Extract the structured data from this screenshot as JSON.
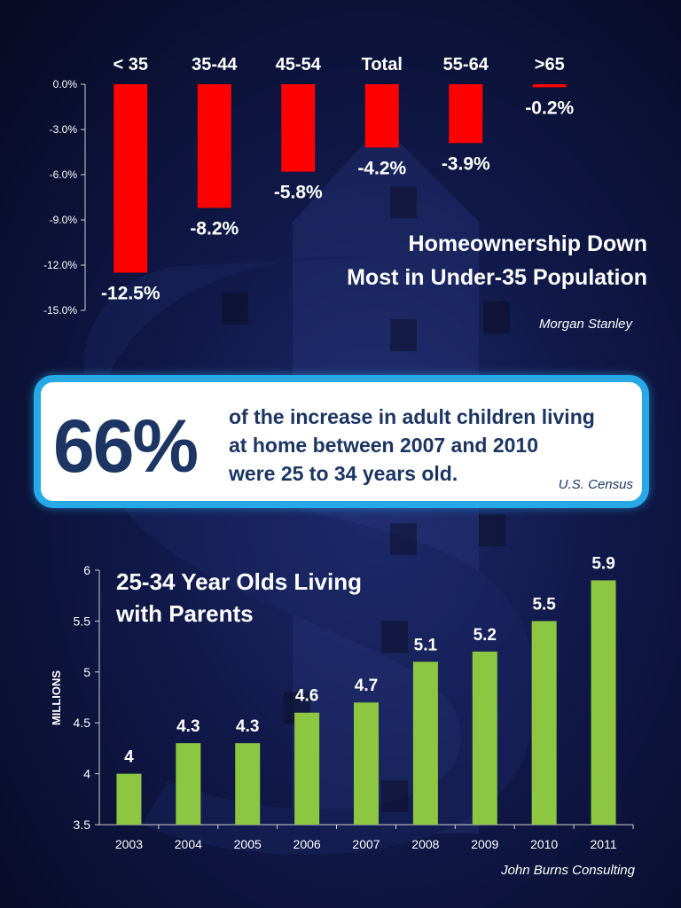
{
  "colors": {
    "negative_bar": "#ff0000",
    "positive_bar": "#8dc641",
    "callout_border": "#27a9e8",
    "callout_text": "#1c3563"
  },
  "top": {
    "title_line1": "Homeownership Down",
    "title_line2": "Most in Under-35 Population",
    "source": "Morgan Stanley"
  },
  "callout": {
    "percent": "66%",
    "line1": "of the increase in adult children living",
    "line2": "at home between 2007 and 2010",
    "line3": "were 25 to 34 years old.",
    "source": "U.S. Census"
  },
  "bottom": {
    "title_line1": "25-34 Year Olds Living",
    "title_line2": "with Parents",
    "source": "John Burns Consulting"
  },
  "chart_data": [
    {
      "type": "bar",
      "title": "Homeownership Down Most in Under-35 Population",
      "categories": [
        "< 35",
        "35-44",
        "45-54",
        "Total",
        "55-64",
        ">65"
      ],
      "values": [
        -12.5,
        -8.2,
        -5.8,
        -4.2,
        -3.9,
        -0.2
      ],
      "data_labels": [
        "-12.5%",
        "-8.2%",
        "-5.8%",
        "-4.2%",
        "-3.9%",
        "-0.2%"
      ],
      "ylim": [
        -15,
        0
      ],
      "yticks": [
        0,
        -3,
        -6,
        -9,
        -12,
        -15
      ],
      "ytick_labels": [
        "0.0%",
        "-3.0%",
        "-6.0%",
        "-9.0%",
        "-12.0%",
        "-15.0%"
      ],
      "category_axis": "top",
      "xlabel": "",
      "ylabel": ""
    },
    {
      "type": "bar",
      "title": "25-34 Year Olds Living with Parents",
      "categories": [
        "2003",
        "2004",
        "2005",
        "2006",
        "2007",
        "2008",
        "2009",
        "2010",
        "2011"
      ],
      "values": [
        4,
        4.3,
        4.3,
        4.6,
        4.7,
        5.1,
        5.2,
        5.5,
        5.9
      ],
      "data_labels": [
        "4",
        "4.3",
        "4.3",
        "4.6",
        "4.7",
        "5.1",
        "5.2",
        "5.5",
        "5.9"
      ],
      "ylim": [
        3.5,
        6
      ],
      "yticks": [
        3.5,
        4,
        4.5,
        5,
        5.5,
        6
      ],
      "ytick_labels": [
        "3.5",
        "4",
        "4.5",
        "5",
        "5.5",
        "6"
      ],
      "xlabel": "",
      "ylabel": "MILLIONS"
    }
  ]
}
